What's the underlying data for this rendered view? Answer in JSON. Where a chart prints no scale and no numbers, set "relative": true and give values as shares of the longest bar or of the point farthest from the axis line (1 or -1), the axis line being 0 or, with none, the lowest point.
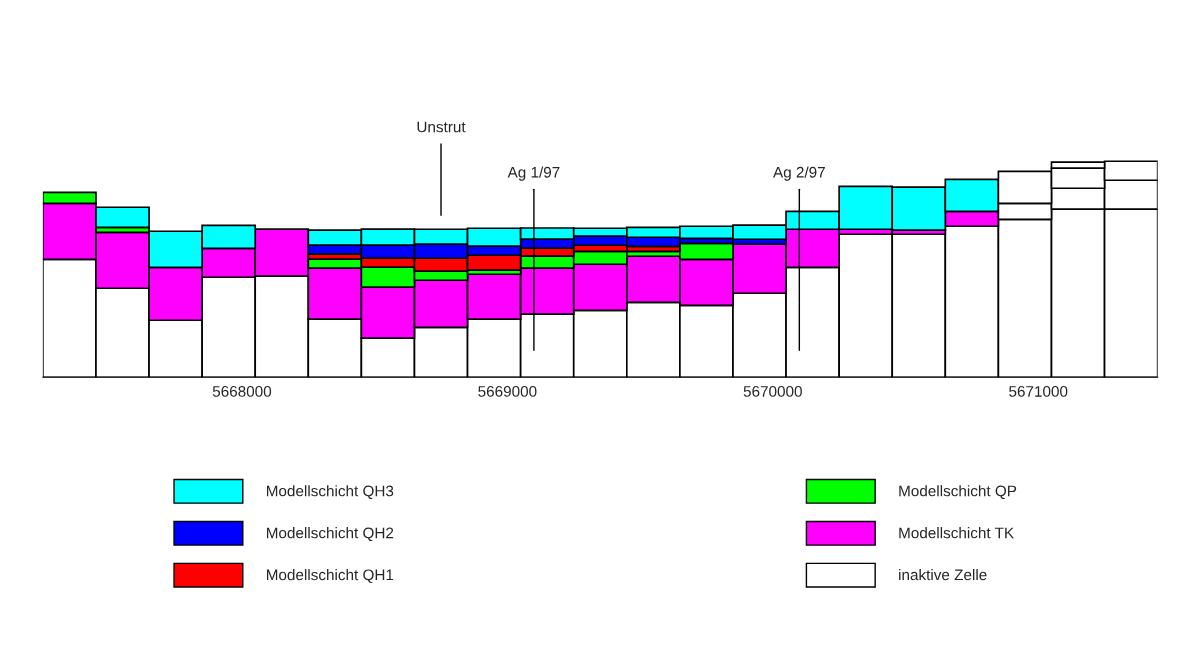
{
  "chart_data": {
    "type": "bar",
    "stacked": true,
    "relative": true,
    "legend": "bottom",
    "x": [
      5667350,
      5667550,
      5667750,
      5667950,
      5668150,
      5668350,
      5668550,
      5668750,
      5668950,
      5669150,
      5669350,
      5669550,
      5669750,
      5669950,
      5670150,
      5670350,
      5670550,
      5670750,
      5670950,
      5671150,
      5671350
    ],
    "xlim": [
      5667250,
      5671450
    ],
    "xticks": [
      5668000,
      5669000,
      5670000,
      5671000
    ],
    "series": [
      {
        "name": "inaktive Zelle",
        "color": "#ffffff",
        "values": [
          0.546,
          0.412,
          0.264,
          0.463,
          0.468,
          0.269,
          0.181,
          0.231,
          0.269,
          0.292,
          0.31,
          0.347,
          0.333,
          0.389,
          0.509,
          0.662,
          0.662,
          0.699,
          0.731,
          0.778,
          0.778
        ]
      },
      {
        "name": "Modellschicht TK",
        "color": "#ff00ff",
        "values": [
          0.259,
          0.259,
          0.245,
          0.134,
          0.218,
          0.236,
          0.236,
          0.218,
          0.208,
          0.213,
          0.213,
          0.213,
          0.213,
          0.227,
          0.176,
          0.023,
          0.019,
          0.069,
          0,
          0,
          0
        ]
      },
      {
        "name": "Modellschicht QP",
        "color": "#00ff00",
        "values": [
          0.051,
          0.023,
          0,
          0,
          0,
          0.042,
          0.093,
          0.042,
          0.019,
          0.056,
          0.06,
          0.023,
          0.074,
          0,
          0,
          0,
          0,
          0,
          0,
          0,
          0
        ]
      },
      {
        "name": "Modellschicht QH1",
        "color": "#ff0000",
        "values": [
          0,
          0,
          0,
          0,
          0,
          0.023,
          0.042,
          0.06,
          0.069,
          0.037,
          0.028,
          0.023,
          0,
          0,
          0,
          0,
          0,
          0,
          0,
          0,
          0
        ]
      },
      {
        "name": "Modellschicht QH2",
        "color": "#0000ff",
        "values": [
          0,
          0,
          0,
          0,
          0,
          0.042,
          0.06,
          0.065,
          0.042,
          0.042,
          0.042,
          0.042,
          0.023,
          0.023,
          0,
          0,
          0,
          0,
          0,
          0,
          0
        ]
      },
      {
        "name": "Modellschicht QH3",
        "color": "#00ffff",
        "values": [
          0,
          0.093,
          0.167,
          0.106,
          0,
          0.069,
          0.074,
          0.069,
          0.083,
          0.051,
          0.037,
          0.046,
          0.056,
          0.065,
          0.083,
          0.199,
          0.199,
          0.148,
          0,
          0,
          0
        ]
      },
      {
        "color": "#ffffff",
        "values": [
          0,
          0,
          0,
          0,
          0,
          0,
          0,
          0,
          0,
          0,
          0,
          0,
          0,
          0,
          0,
          0,
          0,
          0,
          0.074,
          0.097,
          0.134
        ]
      },
      {
        "color": "#ffffff",
        "values": [
          0,
          0,
          0,
          0,
          0,
          0,
          0,
          0,
          0,
          0,
          0,
          0,
          0,
          0,
          0,
          0,
          0,
          0,
          0.148,
          0.093,
          0.088
        ]
      },
      {
        "color": "#ffffff",
        "values": [
          0,
          0,
          0,
          0,
          0,
          0,
          0,
          0,
          0,
          0,
          0,
          0,
          0,
          0,
          0,
          0,
          0,
          0,
          0,
          0.028,
          0
        ]
      }
    ],
    "ref_lines": [
      {
        "axis": "x",
        "value": 5668750,
        "label": "Unstrut"
      },
      {
        "axis": "x",
        "value": 5669100,
        "label": "Ag 1/97"
      },
      {
        "axis": "x",
        "value": 5670100,
        "label": "Ag 2/97"
      }
    ]
  }
}
